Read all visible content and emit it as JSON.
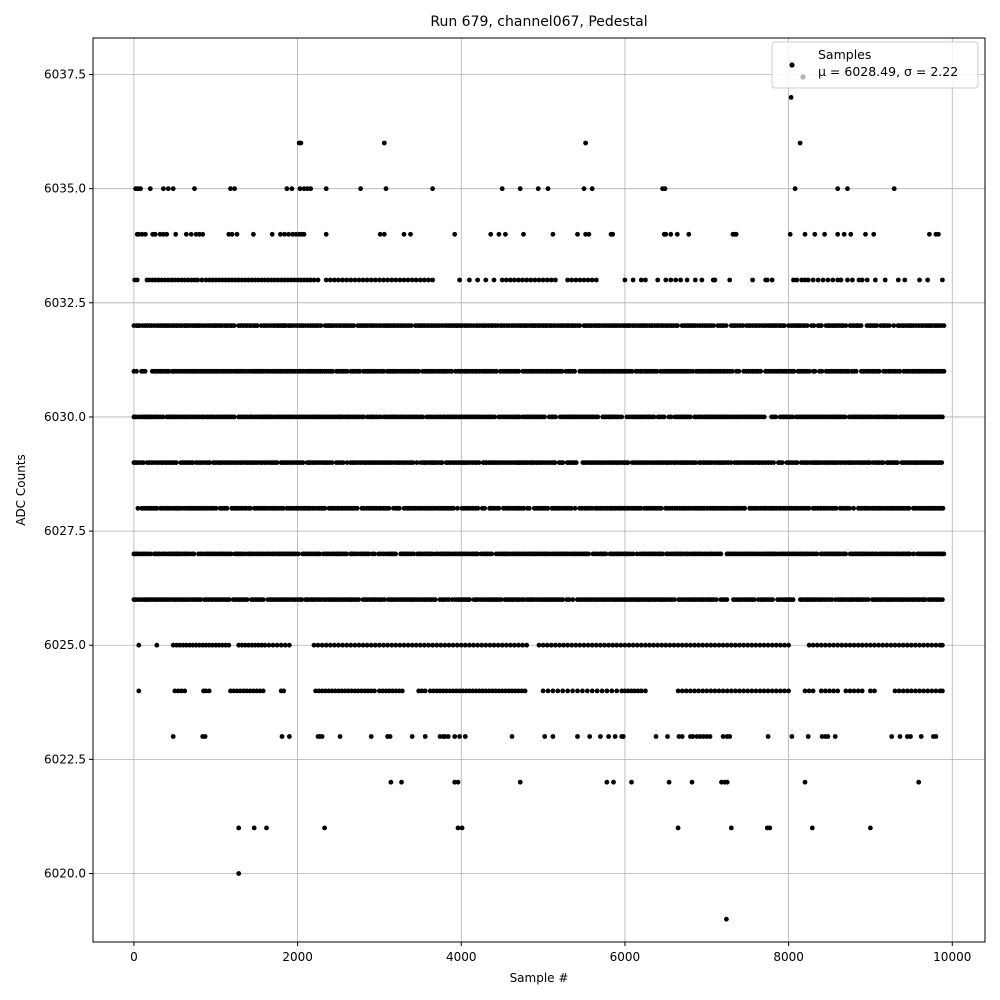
{
  "chart_data": {
    "type": "scatter",
    "title": "Run 679, channel067, Pedestal",
    "xlabel": "Sample #",
    "ylabel": "ADC Counts",
    "xlim": [
      -500,
      10400
    ],
    "ylim": [
      6018.5,
      6038.3
    ],
    "x_ticks": [
      0,
      2000,
      4000,
      6000,
      8000,
      10000
    ],
    "x_tick_labels": [
      "0",
      "2000",
      "4000",
      "6000",
      "8000",
      "10000"
    ],
    "y_ticks": [
      6020.0,
      6022.5,
      6025.0,
      6027.5,
      6030.0,
      6032.5,
      6035.0,
      6037.5
    ],
    "y_tick_labels": [
      "6020.0",
      "6022.5",
      "6025.0",
      "6027.5",
      "6030.0",
      "6032.5",
      "6035.0",
      "6037.5"
    ],
    "grid": true,
    "legend": {
      "placement": "top-right",
      "series_label": "Samples",
      "stats_label": "μ = 6028.49, σ = 2.22"
    },
    "series": [
      {
        "name": "Samples",
        "color": "#000000",
        "n_samples": 9900,
        "x_range": [
          0,
          9900
        ],
        "mean": 6028.49,
        "sigma": 2.22,
        "continuous_rows": [
          6026,
          6027,
          6028,
          6029,
          6030,
          6031,
          6032
        ],
        "sparse_rows": [
          {
            "y": 6024,
            "x": [
              60,
              500,
              540,
              580,
              620,
              850,
              880,
              920,
              1180,
              1220,
              1260,
              1300,
              1340,
              1380,
              1420,
              1460,
              1500,
              1540,
              1580,
              1800,
              1830,
              2220,
              2260,
              2300,
              2340,
              2380,
              2420,
              2460,
              2500,
              2540,
              2580,
              2620,
              2660,
              2700,
              2740,
              2780,
              2820,
              2860,
              2900,
              2940,
              3000,
              3040,
              3080,
              3120,
              3160,
              3200,
              3240,
              3280,
              3480,
              3520,
              3560,
              3620,
              3660,
              3700,
              3740,
              3780,
              3820,
              3860,
              3900,
              3940,
              3980,
              4020,
              4060,
              4100,
              4140,
              4180,
              4220,
              4260,
              4300,
              4340,
              4380,
              4420,
              4460,
              4500,
              4540,
              4580,
              4620,
              4660,
              4700,
              4740,
              4780,
              5000,
              5060,
              5120,
              5180,
              5240,
              5300,
              5360,
              5420,
              5480,
              5540,
              5600,
              5660,
              5720,
              5780,
              5840,
              5900,
              5960,
              6000,
              6040,
              6080,
              6120,
              6160,
              6200,
              6250,
              6650,
              6700,
              6750,
              6800,
              6850,
              6900,
              6950,
              7000,
              7050,
              7100,
              7150,
              7200,
              7250,
              7300,
              7350,
              7400,
              7450,
              7500,
              7550,
              7600,
              7650,
              7700,
              7750,
              7800,
              7850,
              7900,
              7950,
              8000,
              8200,
              8250,
              8300,
              8400,
              8450,
              8500,
              8550,
              8600,
              8700,
              8750,
              8800,
              8850,
              8900,
              9000,
              9050,
              9300,
              9350,
              9400,
              9450,
              9500,
              9550,
              9600,
              9650,
              9700,
              9750,
              9800,
              9850,
              9880
            ]
          },
          {
            "y": 6025,
            "x": [
              60,
              280,
              480,
              520,
              560,
              600,
              640,
              680,
              720,
              760,
              800,
              840,
              880,
              920,
              960,
              1000,
              1040,
              1080,
              1120,
              1160,
              1280,
              1320,
              1360,
              1400,
              1440,
              1480,
              1520,
              1560,
              1600,
              1650,
              1700,
              1750,
              1800,
              1850,
              1900,
              2200,
              2250,
              2300,
              2350,
              2400,
              2450,
              2500,
              2550,
              2600,
              2650,
              2700,
              2750,
              2800,
              2850,
              2900,
              2950,
              3000,
              3050,
              3100,
              3150,
              3200,
              3250,
              3300,
              3350,
              3400,
              3450,
              3500,
              3550,
              3600,
              3650,
              3700,
              3750,
              3800,
              3850,
              3900,
              3950,
              4000,
              4050,
              4100,
              4150,
              4200,
              4250,
              4300,
              4350,
              4400,
              4450,
              4500,
              4550,
              4600,
              4650,
              4700,
              4750,
              4800,
              4950,
              5000,
              5050,
              5100,
              5150,
              5200,
              5250,
              5300,
              5350,
              5400,
              5450,
              5500,
              5550,
              5600,
              5650,
              5700,
              5750,
              5800,
              5850,
              5900,
              5950,
              6000,
              6050,
              6100,
              6150,
              6200,
              6250,
              6300,
              6350,
              6400,
              6450,
              6500,
              6550,
              6600,
              6650,
              6700,
              6750,
              6800,
              6850,
              6900,
              6950,
              7000,
              7050,
              7100,
              7150,
              7200,
              7250,
              7300,
              7350,
              7400,
              7450,
              7500,
              7550,
              7600,
              7650,
              7700,
              7750,
              7800,
              7850,
              7900,
              7950,
              8000,
              8250,
              8300,
              8350,
              8400,
              8450,
              8500,
              8550,
              8600,
              8650,
              8700,
              8750,
              8800,
              8850,
              8900,
              8950,
              9000,
              9050,
              9100,
              9150,
              9200,
              9250,
              9300,
              9350,
              9400,
              9450,
              9500,
              9550,
              9600,
              9650,
              9700,
              9750,
              9800,
              9850,
              9880
            ]
          },
          {
            "y": 6023,
            "x": [
              480,
              840,
              870,
              1810,
              1900,
              2250,
              2270,
              2300,
              2520,
              2900,
              3100,
              3130,
              3400,
              3560,
              3740,
              3780,
              3800,
              3840,
              3920,
              3980,
              4050,
              4620,
              5020,
              5120,
              5420,
              5570,
              5700,
              5800,
              5880,
              5960,
              5980,
              6380,
              6520,
              6660,
              6700,
              6800,
              6830,
              6880,
              6920,
              6960,
              7000,
              7040,
              7200,
              7250,
              7280,
              7750,
              8040,
              8240,
              8410,
              8450,
              8480,
              8570,
              9260,
              9360,
              9450,
              9490,
              9620,
              9770,
              9800
            ]
          },
          {
            "y": 6022,
            "x": [
              3140,
              3270,
              3920,
              3960,
              4720,
              5780,
              5860,
              6080,
              6540,
              6820,
              7180,
              7220,
              7250,
              8200,
              9590
            ]
          },
          {
            "y": 6021,
            "x": [
              1280,
              1470,
              1620,
              2330,
              3960,
              4010,
              6650,
              7300,
              7740,
              7770,
              8290,
              9000
            ]
          },
          {
            "y": 6020,
            "x": [
              1280
            ]
          },
          {
            "y": 6019,
            "x": [
              7240
            ]
          },
          {
            "y": 6033,
            "x": [
              10,
              40,
              160,
              190,
              230,
              260,
              300,
              340,
              380,
              420,
              460,
              500,
              540,
              580,
              620,
              660,
              700,
              740,
              780,
              830,
              880,
              920,
              960,
              1000,
              1040,
              1080,
              1120,
              1160,
              1200,
              1240,
              1280,
              1320,
              1360,
              1400,
              1440,
              1480,
              1520,
              1560,
              1600,
              1640,
              1680,
              1720,
              1760,
              1800,
              1840,
              1880,
              1920,
              1960,
              2000,
              2040,
              2080,
              2120,
              2160,
              2200,
              2250,
              2350,
              2400,
              2450,
              2500,
              2550,
              2600,
              2650,
              2700,
              2750,
              2800,
              2850,
              2900,
              2950,
              3000,
              3050,
              3100,
              3150,
              3200,
              3250,
              3300,
              3350,
              3400,
              3450,
              3500,
              3550,
              3600,
              3650,
              3980,
              4100,
              4200,
              4300,
              4400,
              4500,
              4550,
              4600,
              4650,
              4700,
              4750,
              4800,
              4850,
              4900,
              4950,
              5000,
              5050,
              5100,
              5150,
              5300,
              5350,
              5400,
              5450,
              5500,
              5550,
              5600,
              5650,
              6000,
              6100,
              6200,
              6250,
              6400,
              6500,
              6560,
              6620,
              6680,
              6760,
              6860,
              6940,
              7080,
              7100,
              7280,
              7560,
              7720,
              7740,
              7800,
              8060,
              8100,
              8160,
              8200,
              8240,
              8300,
              8360,
              8420,
              8480,
              8540,
              8600,
              8640,
              8720,
              8780,
              8860,
              8900,
              8960,
              9060,
              9180,
              9340,
              9420,
              9600,
              9700,
              9880
            ]
          },
          {
            "y": 6034,
            "x": [
              40,
              60,
              100,
              140,
              230,
              260,
              320,
              360,
              400,
              510,
              640,
              700,
              760,
              800,
              840,
              1160,
              1200,
              1260,
              1460,
              1690,
              1790,
              1840,
              1890,
              1940,
              1980,
              2020,
              2050,
              2080,
              2350,
              3010,
              3060,
              3300,
              3380,
              3920,
              4360,
              4460,
              4540,
              4760,
              5120,
              5420,
              5520,
              5560,
              5830,
              5850,
              6480,
              6500,
              6560,
              6640,
              6780,
              7320,
              7340,
              7360,
              8020,
              8200,
              8320,
              8440,
              8600,
              8680,
              8760,
              8940,
              9040,
              9720,
              9800,
              9830
            ]
          },
          {
            "y": 6035,
            "x": [
              20,
              50,
              80,
              200,
              360,
              420,
              480,
              740,
              1180,
              1230,
              1870,
              1930,
              2030,
              2080,
              2120,
              2160,
              2350,
              2770,
              3080,
              3650,
              4500,
              4720,
              4940,
              5060,
              5500,
              5600,
              6460,
              6490,
              8080,
              8600,
              8720,
              9290
            ]
          },
          {
            "y": 6036,
            "x": [
              2020,
              2040,
              3060,
              5520,
              8140
            ]
          },
          {
            "y": 6037,
            "x": [
              8030
            ]
          }
        ]
      }
    ]
  }
}
